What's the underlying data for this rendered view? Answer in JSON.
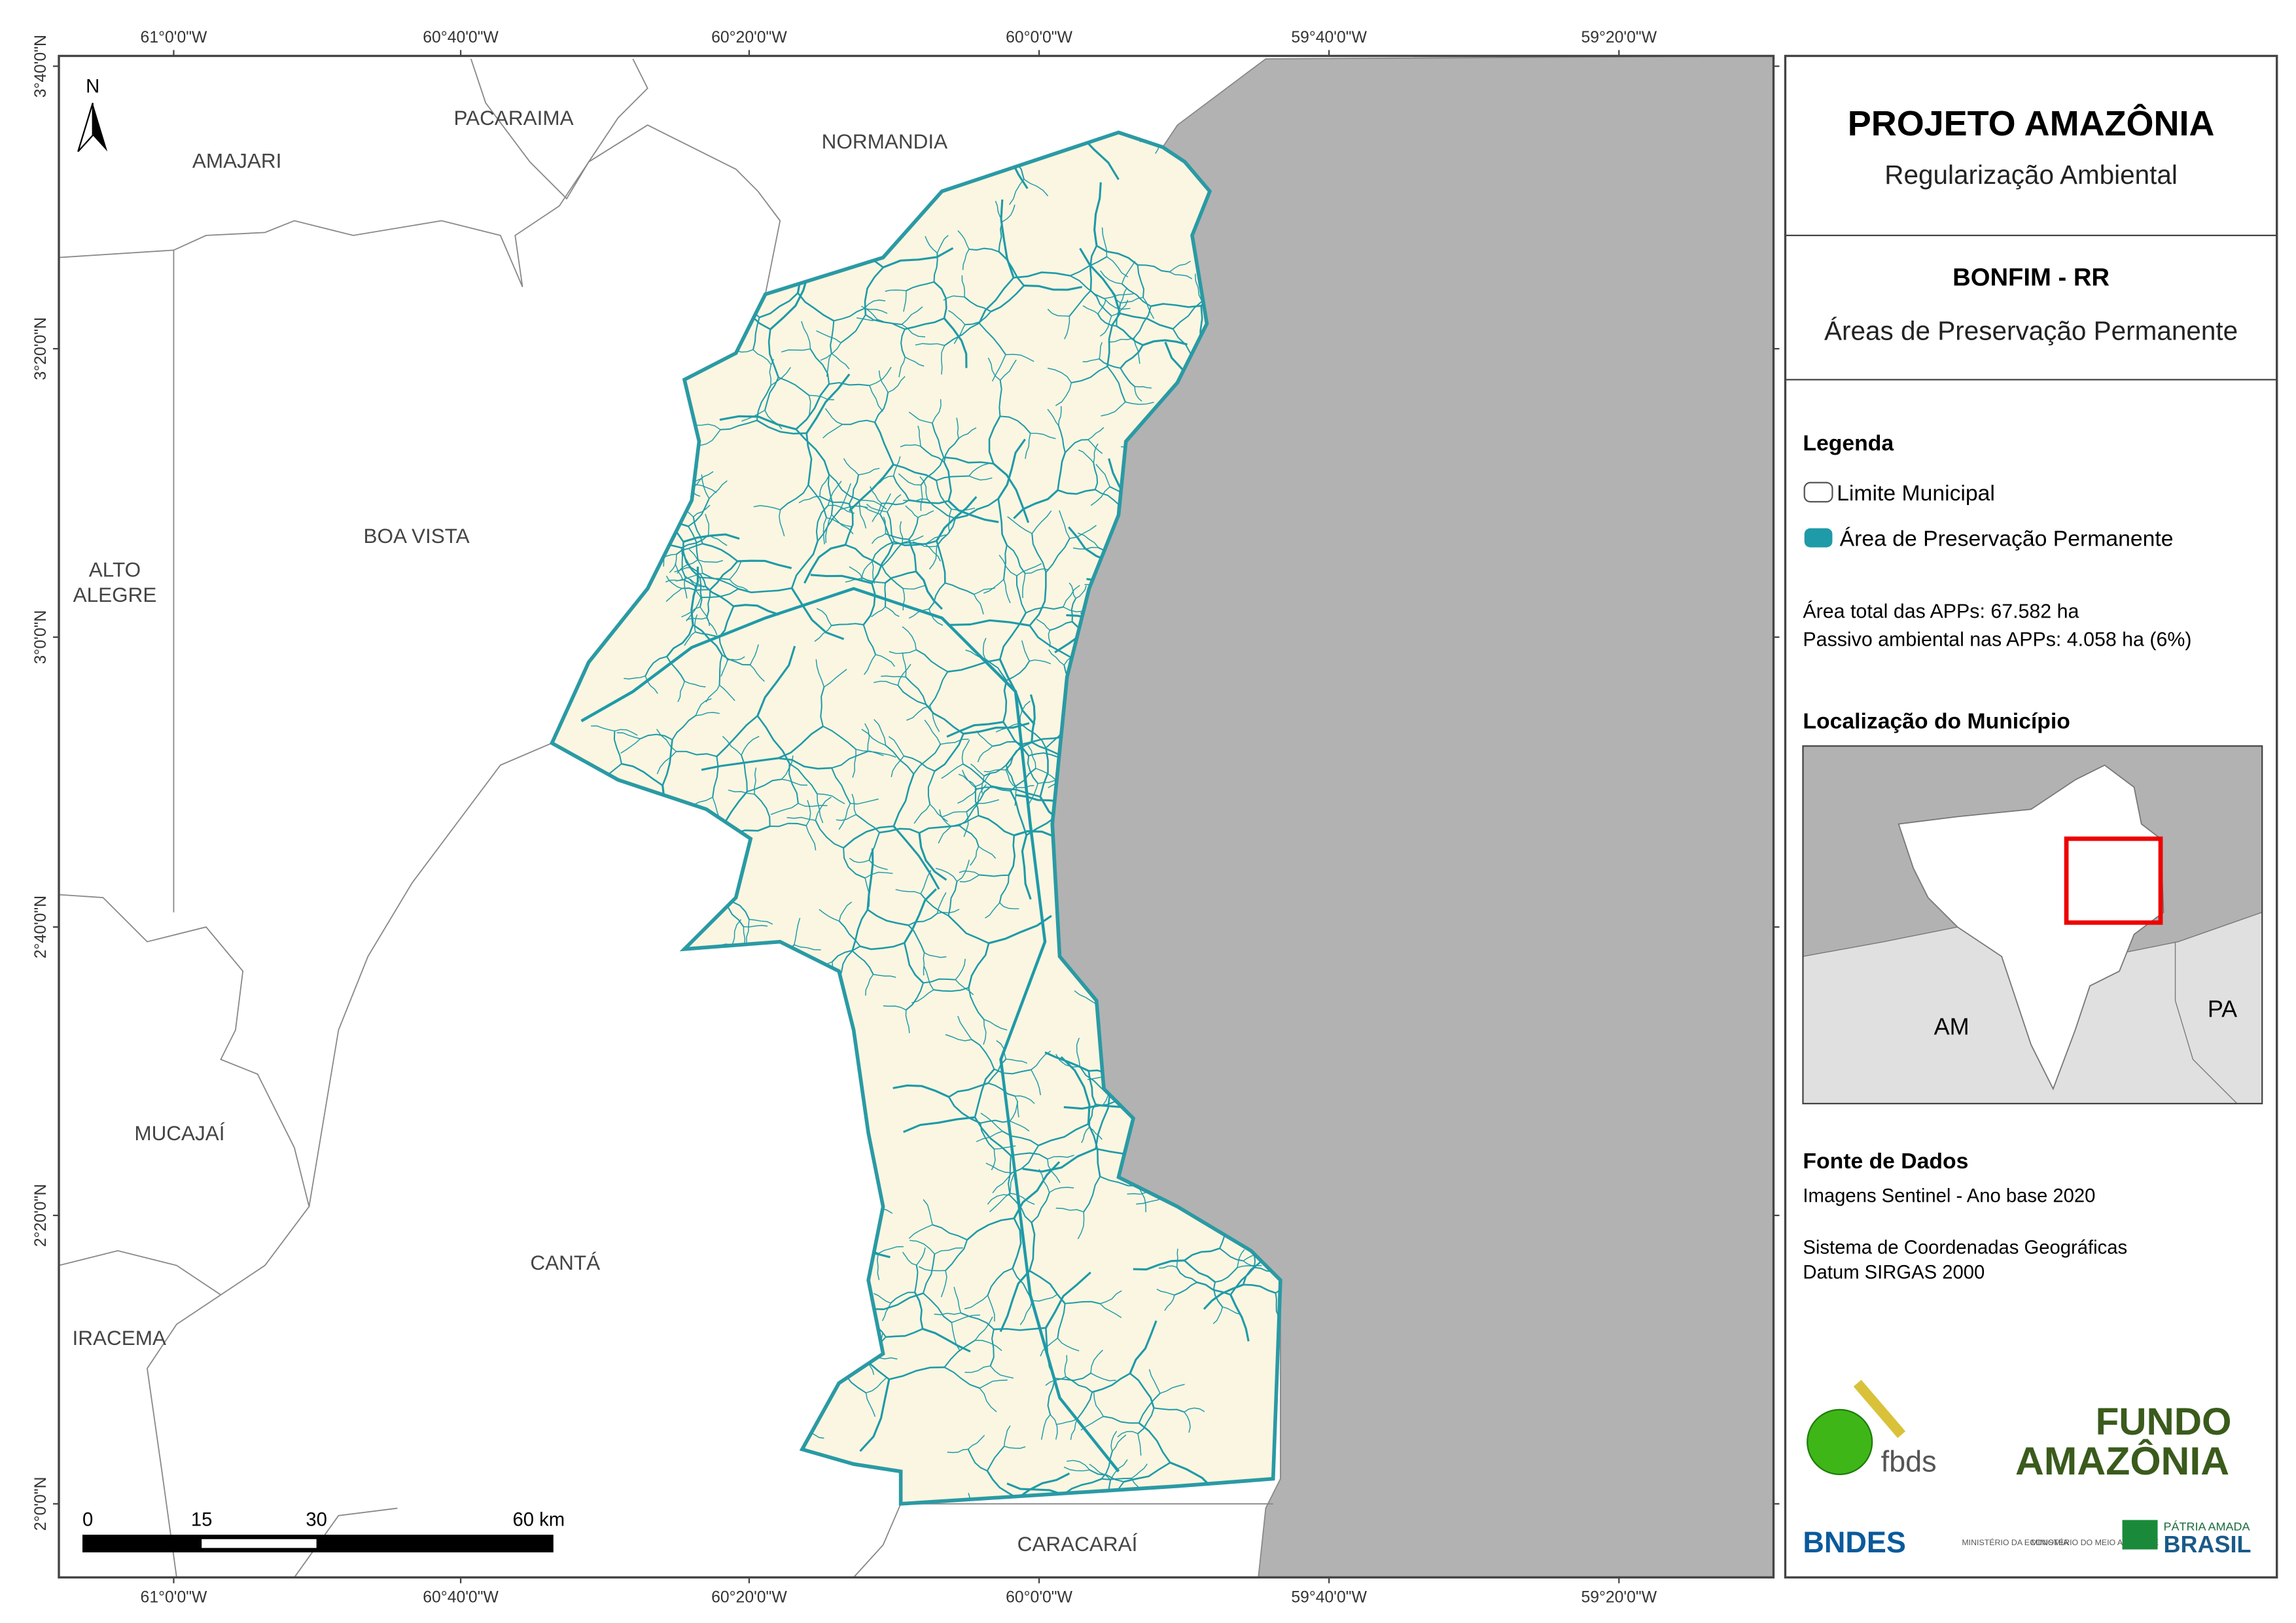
{
  "header": {
    "title": "PROJETO AMAZÔNIA",
    "subtitle": "Regularização Ambiental"
  },
  "municipality": {
    "name": "BONFIM - RR",
    "theme": "Áreas de Preservação Permanente"
  },
  "legend": {
    "title": "Legenda",
    "items": [
      "Limite Municipal",
      "Área de Preservação Permanente"
    ]
  },
  "stats": [
    "Área total das APPs: 67.582 ha",
    "Passivo ambiental nas APPs: 4.058 ha (6%)"
  ],
  "location": {
    "title": "Localização do Município",
    "labels": [
      "AM",
      "PA"
    ]
  },
  "sources": {
    "title": "Fonte de Dados",
    "lines": [
      "Imagens Sentinel - Ano base 2020",
      "Sistema de Coordenadas Geográficas",
      "Datum SIRGAS 2000"
    ]
  },
  "logos": [
    "fbds",
    "FUNDO",
    "AMAZÔNIA",
    "BNDES",
    "MINISTÉRIO DA ECONOMIA",
    "MINISTÉRIO DO MEIO AMBIENTE",
    "PÁTRIA AMADA",
    "BRASIL"
  ],
  "map": {
    "north": "N",
    "municipalities": [
      "AMAJARI",
      "PACARAIMA",
      "NORMANDIA",
      "BOA VISTA",
      "ALTO",
      "ALEGRE",
      "MUCAJAÍ",
      "CANTÁ",
      "IRACEMA",
      "CARACARAÍ"
    ],
    "lon_labels": [
      "61°0'0\"W",
      "60°40'0\"W",
      "60°20'0\"W",
      "60°0'0\"W",
      "59°40'0\"W",
      "59°20'0\"W"
    ],
    "lat_labels": [
      "3°40'0\"N",
      "3°20'0\"N",
      "3°0'0\"N",
      "2°40'0\"N",
      "2°20'0\"N",
      "2°0'0\"N"
    ],
    "scale": [
      "0",
      "15",
      "30",
      "60 km"
    ]
  }
}
